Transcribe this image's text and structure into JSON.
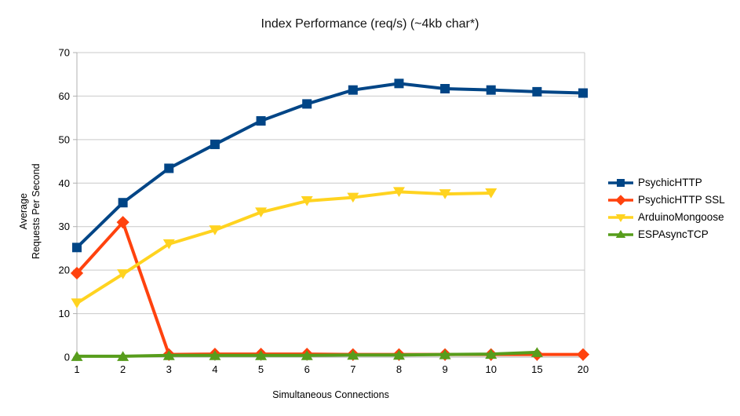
{
  "title": "Index Performance (req/s) (~4kb char*)",
  "chart_data": {
    "type": "line",
    "title": "Index Performance (req/s) (~4kb char*)",
    "xlabel": "Simultaneous Connections",
    "ylabel": "Average Requests Per Second",
    "ylabel_lines": [
      "Average",
      "Requests Per Second"
    ],
    "categories": [
      "1",
      "2",
      "3",
      "4",
      "5",
      "6",
      "7",
      "8",
      "9",
      "10",
      "15",
      "20"
    ],
    "ylim": [
      0,
      70
    ],
    "y_ticks": [
      0,
      10,
      20,
      30,
      40,
      50,
      60,
      70
    ],
    "grid": true,
    "legend_position": "right",
    "series": [
      {
        "name": "PsychicHTTP",
        "color": "#004586",
        "marker": "square",
        "values": [
          25.2,
          35.5,
          43.4,
          48.9,
          54.3,
          58.2,
          61.4,
          62.9,
          61.7,
          61.4,
          61.0,
          60.7
        ]
      },
      {
        "name": "PsychicHTTP SSL",
        "color": "#FF420E",
        "marker": "diamond",
        "values": [
          19.3,
          31.0,
          0.6,
          0.7,
          0.7,
          0.7,
          0.6,
          0.6,
          0.6,
          0.6,
          0.6,
          0.6
        ]
      },
      {
        "name": "ArduinoMongoose",
        "color": "#FFD320",
        "marker": "triangle-down",
        "values": [
          12.4,
          19.1,
          26.0,
          29.2,
          33.3,
          35.9,
          36.7,
          38.0,
          37.5,
          37.7,
          null,
          null
        ]
      },
      {
        "name": "ESPAsyncTCP",
        "color": "#579D1C",
        "marker": "triangle-up",
        "values": [
          0.2,
          0.2,
          0.4,
          0.4,
          0.4,
          0.4,
          0.5,
          0.5,
          0.6,
          0.7,
          1.1,
          null
        ]
      }
    ]
  }
}
